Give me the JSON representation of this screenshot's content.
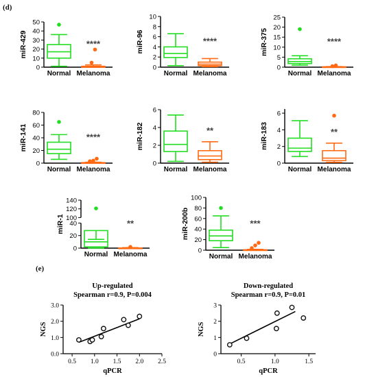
{
  "figure": {
    "panel_d_label": "(d)",
    "panel_e_label": "(e)"
  },
  "colors": {
    "normal": "#22dd22",
    "melanoma": "#ff6a13",
    "axis": "#000000",
    "significance": "#444444",
    "scatter_point": "#111111"
  },
  "chart_data": [
    {
      "type": "box",
      "id": "mir-429",
      "ylabel": "miR-429",
      "categories": [
        "Normal",
        "Melanoma"
      ],
      "yticks": [
        0,
        10,
        20,
        30,
        40,
        50
      ],
      "ylim": [
        0,
        50
      ],
      "boxes": [
        {
          "name": "Normal",
          "min": 1,
          "q1": 10,
          "median": 17,
          "q3": 25,
          "max": 36,
          "outliers": [
            47
          ]
        },
        {
          "name": "Melanoma",
          "min": 0,
          "q1": 0,
          "median": 0.4,
          "q3": 1,
          "max": 2.5,
          "outliers": [
            5,
            19.5
          ]
        }
      ],
      "significance": "****"
    },
    {
      "type": "box",
      "id": "mir-96",
      "ylabel": "miR-96",
      "categories": [
        "Normal",
        "Melanoma"
      ],
      "yticks": [
        0,
        2,
        4,
        6,
        8,
        10
      ],
      "ylim": [
        0,
        10
      ],
      "boxes": [
        {
          "name": "Normal",
          "min": 0.3,
          "q1": 1.9,
          "median": 2.7,
          "q3": 4.0,
          "max": 6.6,
          "outliers": []
        },
        {
          "name": "Melanoma",
          "min": 0.1,
          "q1": 0.3,
          "median": 0.6,
          "q3": 1.0,
          "max": 1.7,
          "outliers": []
        }
      ],
      "significance": "****"
    },
    {
      "type": "box",
      "id": "mir-375",
      "ylabel": "miR-375",
      "categories": [
        "Normal",
        "Melanoma"
      ],
      "yticks": [
        0,
        5,
        10,
        15,
        20,
        25
      ],
      "ylim": [
        0,
        25
      ],
      "boxes": [
        {
          "name": "Normal",
          "min": 1,
          "q1": 1.8,
          "median": 2.8,
          "q3": 4.2,
          "max": 5.7,
          "outliers": [
            19
          ]
        },
        {
          "name": "Melanoma",
          "min": 0,
          "q1": 0,
          "median": 0.1,
          "q3": 0.2,
          "max": 0.3,
          "outliers": [
            0.5,
            0.9
          ]
        }
      ],
      "significance": "****"
    },
    {
      "type": "box",
      "id": "mir-141",
      "ylabel": "miR-141",
      "categories": [
        "Normal",
        "Melanoma"
      ],
      "yticks": [
        0,
        20,
        40,
        60,
        80
      ],
      "ylim": [
        0,
        80
      ],
      "boxes": [
        {
          "name": "Normal",
          "min": 6,
          "q1": 15,
          "median": 22,
          "q3": 33,
          "max": 45,
          "outliers": [
            65
          ]
        },
        {
          "name": "Melanoma",
          "min": 0,
          "q1": 0,
          "median": 0.3,
          "q3": 0.8,
          "max": 1.5,
          "outliers": [
            3,
            4,
            7
          ]
        }
      ],
      "significance": "****"
    },
    {
      "type": "box",
      "id": "mir-182",
      "ylabel": "miR-182",
      "categories": [
        "Normal",
        "Melanoma"
      ],
      "yticks": [
        0,
        2,
        4,
        6
      ],
      "ylim": [
        0,
        6
      ],
      "boxes": [
        {
          "name": "Normal",
          "min": 0.2,
          "q1": 1.3,
          "median": 2.1,
          "q3": 3.6,
          "max": 5.4,
          "outliers": []
        },
        {
          "name": "Melanoma",
          "min": 0.1,
          "q1": 0.4,
          "median": 0.8,
          "q3": 1.4,
          "max": 2.4,
          "outliers": []
        }
      ],
      "significance": "**"
    },
    {
      "type": "box",
      "id": "mir-183",
      "ylabel": "miR-183",
      "categories": [
        "Normal",
        "Melanoma"
      ],
      "yticks": [
        0,
        2,
        4,
        6
      ],
      "ylim": [
        0,
        6.5
      ],
      "boxes": [
        {
          "name": "Normal",
          "min": 0.8,
          "q1": 1.4,
          "median": 1.8,
          "q3": 3.0,
          "max": 5.1,
          "outliers": []
        },
        {
          "name": "Melanoma",
          "min": 0.1,
          "q1": 0.3,
          "median": 0.6,
          "q3": 1.5,
          "max": 2.4,
          "outliers": [
            5.7
          ]
        }
      ],
      "significance": "**"
    },
    {
      "type": "box",
      "id": "mir-1",
      "ylabel": "miR-1",
      "categories": [
        "Normal",
        "Melanoma"
      ],
      "yticks": [
        0,
        20,
        40,
        100,
        120,
        140
      ],
      "broken_axis": {
        "lower": [
          0,
          40
        ],
        "upper": [
          100,
          140
        ]
      },
      "boxes": [
        {
          "name": "Normal",
          "min": 0,
          "q1": 2,
          "median": 10,
          "q3": 28,
          "max": 50,
          "outliers": [
            121
          ]
        },
        {
          "name": "Melanoma",
          "min": 0,
          "q1": 0,
          "median": 0,
          "q3": 0.3,
          "max": 0.8,
          "outliers": [
            2
          ]
        }
      ],
      "significance": "**"
    },
    {
      "type": "box",
      "id": "mir-200b",
      "ylabel": "miR-200b",
      "categories": [
        "Normal",
        "Melanoma"
      ],
      "yticks": [
        0,
        20,
        40,
        60,
        80,
        100
      ],
      "ylim": [
        0,
        100
      ],
      "boxes": [
        {
          "name": "Normal",
          "min": 5,
          "q1": 18,
          "median": 27,
          "q3": 38,
          "max": 65,
          "outliers": [
            80
          ]
        },
        {
          "name": "Melanoma",
          "min": 0,
          "q1": 0,
          "median": 0.3,
          "q3": 0.8,
          "max": 1.5,
          "outliers": [
            4,
            9,
            14
          ]
        }
      ],
      "significance": "***"
    },
    {
      "type": "scatter",
      "id": "up-regulated",
      "title": "Up-regulated",
      "subtitle": "Spearman r=0.9, P=0.004",
      "xlabel": "qPCR",
      "ylabel": "NGS",
      "xticks": [
        "0.5",
        "1.0",
        "1.5",
        "2.0",
        "2.5"
      ],
      "xlim": [
        0.3,
        2.5
      ],
      "yticks": [
        "0.0",
        "1.0",
        "2.0",
        "3.0"
      ],
      "ylim": [
        0,
        3
      ],
      "points": [
        [
          0.65,
          0.85
        ],
        [
          0.9,
          0.75
        ],
        [
          0.95,
          0.85
        ],
        [
          1.15,
          1.05
        ],
        [
          1.2,
          1.55
        ],
        [
          1.65,
          2.1
        ],
        [
          1.75,
          1.75
        ],
        [
          2.0,
          2.3
        ]
      ],
      "fit": [
        [
          0.65,
          0.7
        ],
        [
          2.0,
          2.15
        ]
      ]
    },
    {
      "type": "scatter",
      "id": "down-regulated",
      "title": "Down-regulated",
      "subtitle": "Spearman r=0.9, P=0.01",
      "xlabel": "qPCR",
      "ylabel": "NGS",
      "xticks": [
        "0.5",
        "1.0",
        "1.5"
      ],
      "xlim": [
        0.2,
        1.6
      ],
      "yticks": [
        "0",
        "1",
        "2",
        "3"
      ],
      "ylim": [
        0,
        3
      ],
      "points": [
        [
          0.33,
          0.55
        ],
        [
          0.58,
          0.95
        ],
        [
          1.02,
          1.55
        ],
        [
          1.03,
          2.5
        ],
        [
          1.25,
          2.85
        ],
        [
          1.42,
          2.2
        ]
      ],
      "fit": [
        [
          0.33,
          0.6
        ],
        [
          1.3,
          2.6
        ]
      ]
    }
  ]
}
